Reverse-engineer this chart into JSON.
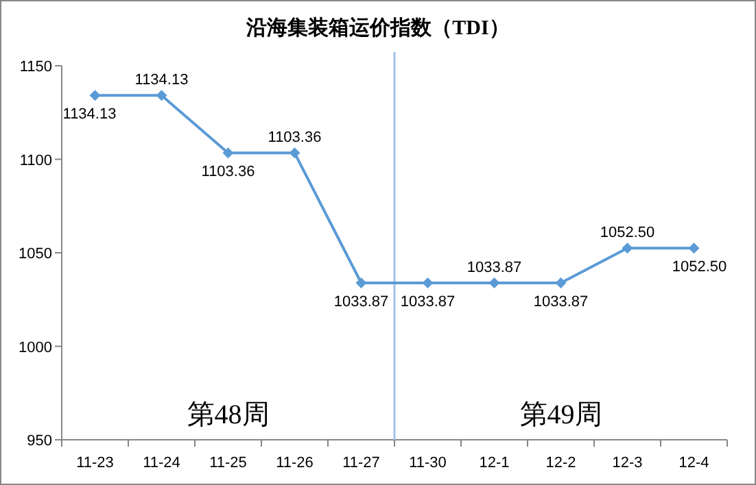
{
  "chart_data": {
    "type": "line",
    "title": "沿海集装箱运价指数（TDI）",
    "categories": [
      "11-23",
      "11-24",
      "11-25",
      "11-26",
      "11-27",
      "11-30",
      "12-1",
      "12-2",
      "12-3",
      "12-4"
    ],
    "series": [
      {
        "color": "#5b9bd5",
        "values": [
          1134.13,
          1134.13,
          1103.36,
          1103.36,
          1033.87,
          1033.87,
          1033.87,
          1033.87,
          1052.5,
          1052.5
        ],
        "value_labels": [
          "1134.13",
          "1134.13",
          "1103.36",
          "1103.36",
          "1033.87",
          "1033.87",
          "1033.87",
          "1033.87",
          "1052.50",
          "1052.50"
        ]
      }
    ],
    "ylim": [
      950,
      1150
    ],
    "yticks": [
      950,
      1000,
      1050,
      1100,
      1150
    ],
    "annotations": [
      "第48周",
      "第49周"
    ],
    "ref_lines": [
      {
        "axis": "x",
        "value": "11-30",
        "color": "#9dc3e6"
      }
    ],
    "marker": "diamond",
    "grid": false
  }
}
